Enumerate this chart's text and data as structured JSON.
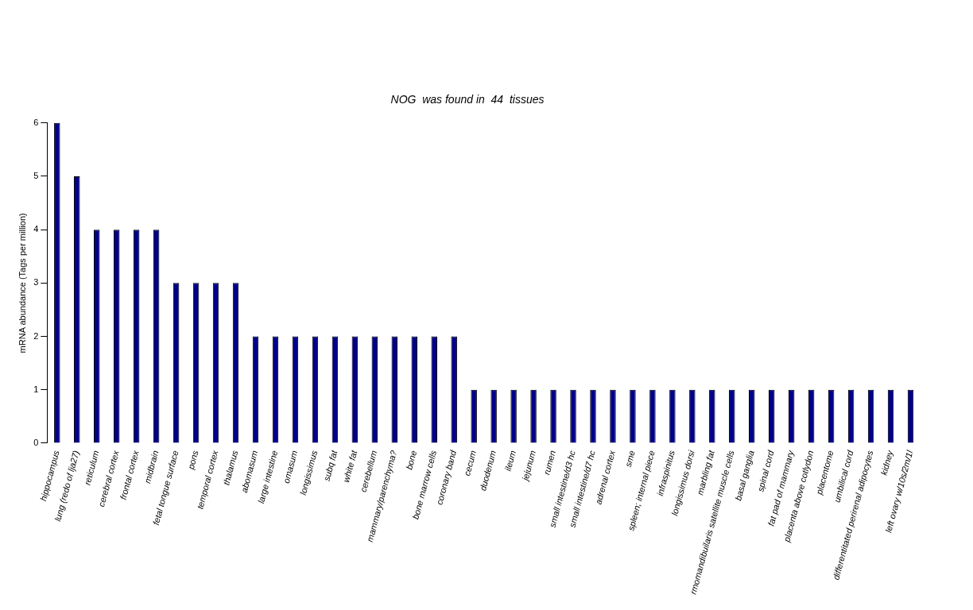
{
  "chart_data": {
    "type": "bar",
    "title": "NOG  was found in  44  tissues",
    "ylabel": "mRNA abundance (Tags per million)",
    "categories": [
      "hippocampus",
      "lung (redo of lja27)",
      "reticulum",
      "cerebral cortex",
      "frontal cortex",
      "midbrain",
      "fetal tongue surface",
      "pons",
      "temporal cortex",
      "thalamus",
      "abomasum",
      "large intestine",
      "omasum",
      "longissimus",
      "subq fat",
      "white fat",
      "cerebellum",
      "mammary/parenchyma?",
      "bone",
      "bone marrow cells",
      "coronary band",
      "cecum",
      "duodenum",
      "ileum",
      "jejunum",
      "rumen",
      "small intestine/d3 hc",
      "small intestine/d7 hc",
      "adrenal cortex",
      "sme",
      "spleen; internal piece",
      "infraspinitus",
      "longissimus dorsi",
      "marbling fat",
      "rmomandibuilaris satellite muscle cells",
      "basal ganglia",
      "spinal cord",
      "fat pad of mammary",
      "placenta above cotlydon",
      "placentome",
      "umbilical cord",
      "differentitated perirenal adipocytes",
      "kidney",
      "left ovary w/10s/2m/1l"
    ],
    "values": [
      6,
      5,
      4,
      4,
      4,
      4,
      3,
      3,
      3,
      3,
      2,
      2,
      2,
      2,
      2,
      2,
      2,
      2,
      2,
      2,
      2,
      1,
      1,
      1,
      1,
      1,
      1,
      1,
      1,
      1,
      1,
      1,
      1,
      1,
      1,
      1,
      1,
      1,
      1,
      1,
      1,
      1,
      1,
      1
    ],
    "color": "#00008b",
    "ylim": [
      0,
      6
    ],
    "yticks": [
      0,
      1,
      2,
      3,
      4,
      5,
      6
    ],
    "grid": false,
    "legend": false
  }
}
